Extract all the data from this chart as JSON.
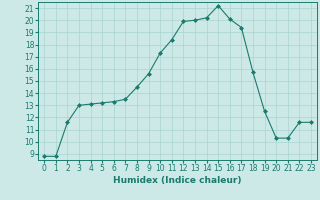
{
  "x": [
    0,
    1,
    2,
    3,
    4,
    5,
    6,
    7,
    8,
    9,
    10,
    11,
    12,
    13,
    14,
    15,
    16,
    17,
    18,
    19,
    20,
    21,
    22,
    23
  ],
  "y": [
    8.8,
    8.8,
    11.6,
    13.0,
    13.1,
    13.2,
    13.3,
    13.5,
    14.5,
    15.6,
    17.3,
    18.4,
    19.9,
    20.0,
    20.2,
    21.2,
    20.1,
    19.4,
    15.7,
    12.5,
    10.3,
    10.3,
    11.6,
    11.6
  ],
  "xlabel": "Humidex (Indice chaleur)",
  "ylabel": "",
  "xlim": [
    -0.5,
    23.5
  ],
  "ylim": [
    8.5,
    21.5
  ],
  "yticks": [
    9,
    10,
    11,
    12,
    13,
    14,
    15,
    16,
    17,
    18,
    19,
    20,
    21
  ],
  "xticks": [
    0,
    1,
    2,
    3,
    4,
    5,
    6,
    7,
    8,
    9,
    10,
    11,
    12,
    13,
    14,
    15,
    16,
    17,
    18,
    19,
    20,
    21,
    22,
    23
  ],
  "line_color": "#1a7a6e",
  "marker": "D",
  "bg_color": "#cce9e7",
  "grid_color": "#aad4d1",
  "label_fontsize": 6.5,
  "tick_fontsize": 5.5
}
